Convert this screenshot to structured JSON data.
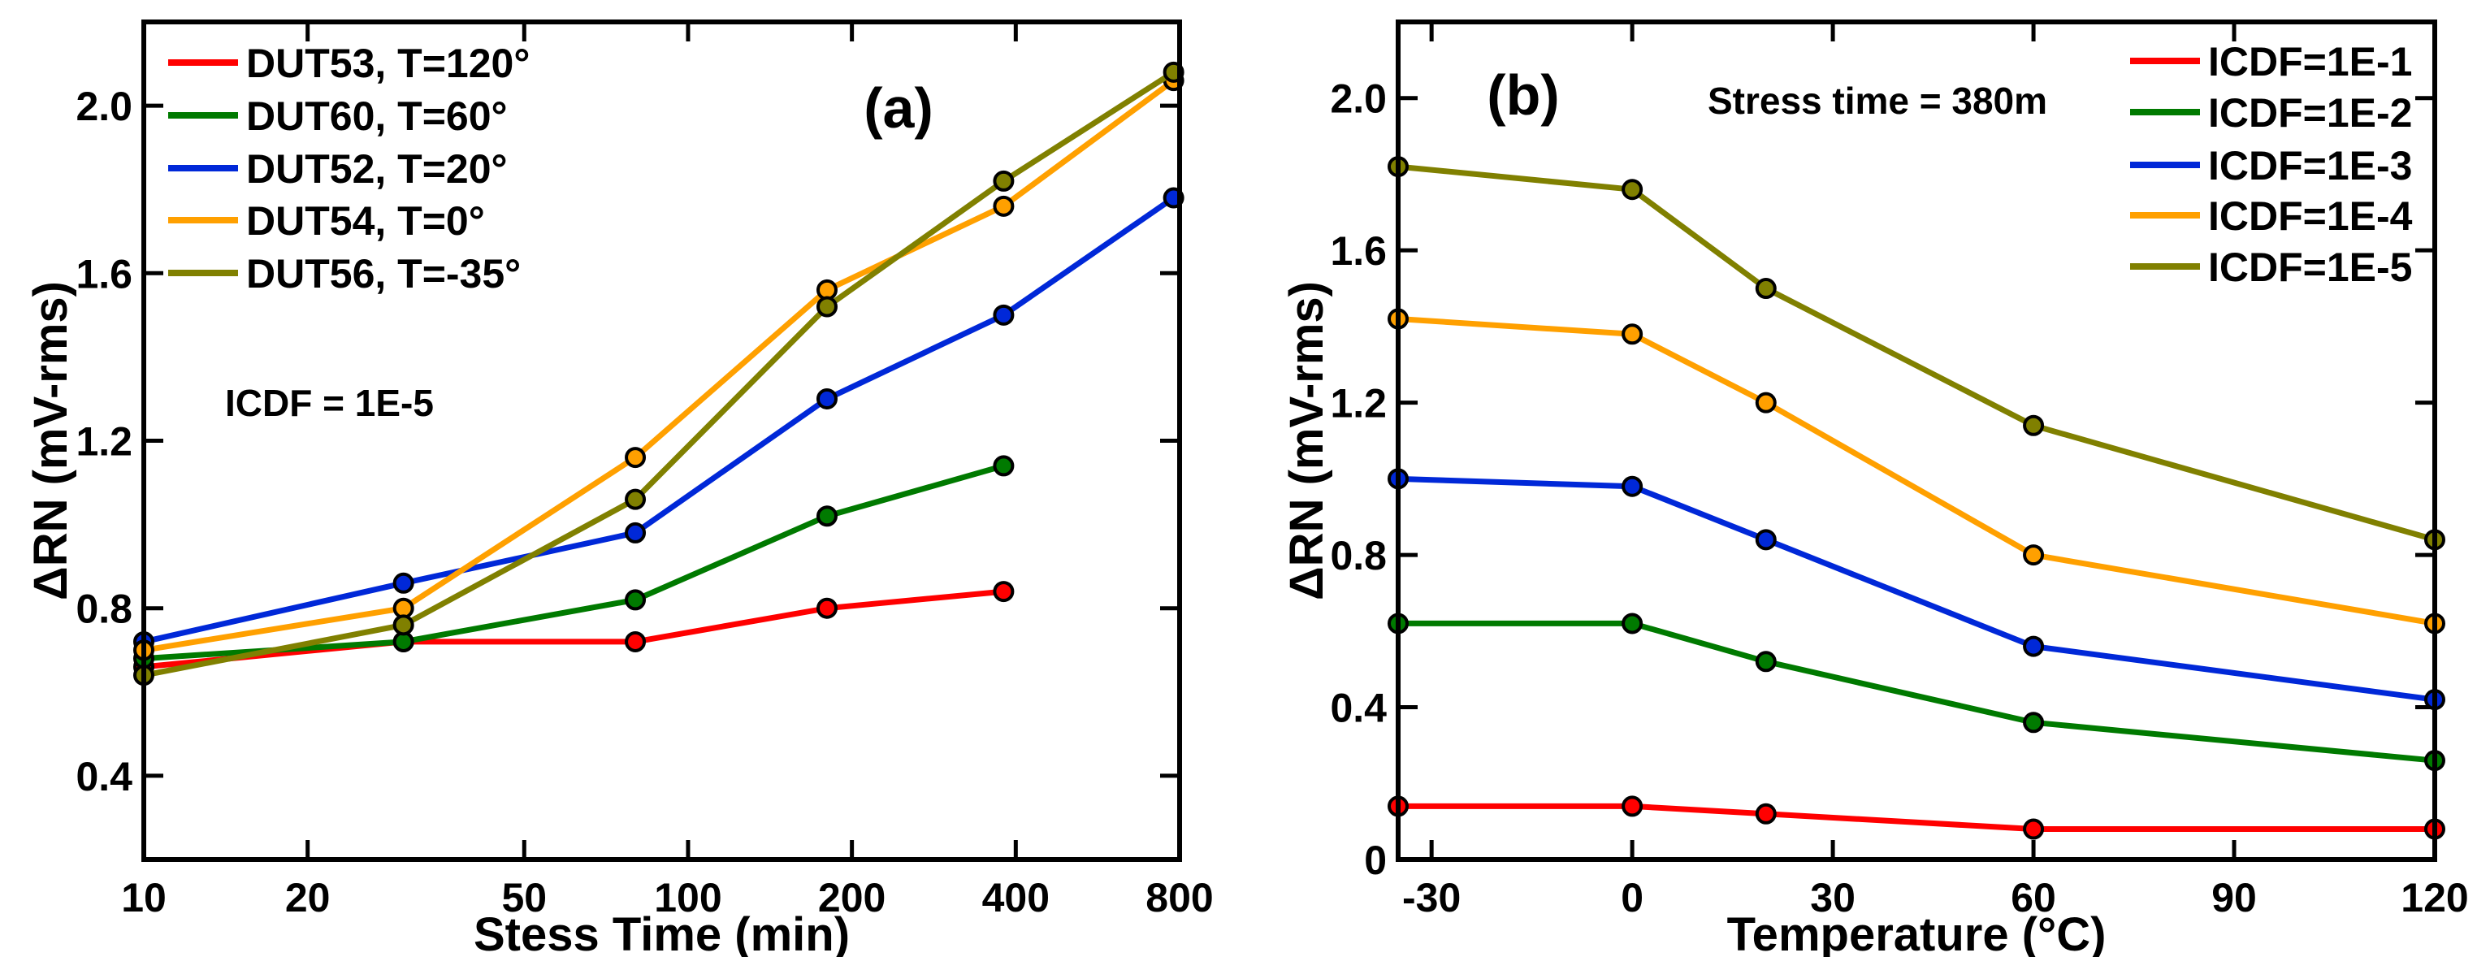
{
  "chart_data": [
    {
      "type": "line",
      "panel_label": "(a)",
      "annotation": "ICDF = 1E-5",
      "xlabel": "Stess Time (min)",
      "ylabel": "ΔRN (mV-rms)",
      "xscale": "log",
      "xlim": [
        10,
        800
      ],
      "ylim": [
        0.2,
        2.2
      ],
      "xticks": [
        10,
        20,
        50,
        100,
        200,
        400,
        800
      ],
      "xtick_labels": [
        "10",
        "20",
        "50",
        "100",
        "200",
        "400",
        "800"
      ],
      "yticks": [
        0.4,
        0.8,
        1.2,
        1.6,
        2.0
      ],
      "ytick_labels": [
        "0.4",
        "0.8",
        "1.2",
        "1.6",
        "2.0"
      ],
      "legend_position": "top-left",
      "grid": false,
      "series": [
        {
          "name": "DUT53, T=120°",
          "color": "#ff0000",
          "x": [
            10,
            30,
            80,
            180,
            380
          ],
          "y": [
            0.66,
            0.72,
            0.72,
            0.8,
            0.84
          ]
        },
        {
          "name": "DUT60, T=60°",
          "color": "#007a00",
          "x": [
            10,
            30,
            80,
            180,
            380
          ],
          "y": [
            0.68,
            0.72,
            0.82,
            1.02,
            1.14
          ]
        },
        {
          "name": "DUT52, T=20°",
          "color": "#0028d8",
          "x": [
            10,
            30,
            80,
            180,
            380,
            780
          ],
          "y": [
            0.72,
            0.86,
            0.98,
            1.3,
            1.5,
            1.78
          ]
        },
        {
          "name": "DUT54, T=0°",
          "color": "#ffa000",
          "x": [
            10,
            30,
            80,
            180,
            380,
            780
          ],
          "y": [
            0.7,
            0.8,
            1.16,
            1.56,
            1.76,
            2.06
          ]
        },
        {
          "name": "DUT56, T=-35°",
          "color": "#808000",
          "x": [
            10,
            30,
            80,
            180,
            380,
            780
          ],
          "y": [
            0.64,
            0.76,
            1.06,
            1.52,
            1.82,
            2.08
          ]
        }
      ]
    },
    {
      "type": "line",
      "panel_label": "(b)",
      "annotation": "Stress time = 380m",
      "xlabel": "Temperature (°C)",
      "ylabel": "ΔRN (mV-rms)",
      "xscale": "linear",
      "xlim": [
        -35,
        120
      ],
      "ylim": [
        0,
        2.2
      ],
      "xticks": [
        -30,
        0,
        30,
        60,
        90,
        120
      ],
      "xtick_labels": [
        "-30",
        "0",
        "30",
        "60",
        "90",
        "120"
      ],
      "yticks": [
        0,
        0.4,
        0.8,
        1.2,
        1.6,
        2.0
      ],
      "ytick_labels": [
        "0",
        "0.4",
        "0.8",
        "1.2",
        "1.6",
        "2.0"
      ],
      "legend_position": "top-right",
      "grid": false,
      "series": [
        {
          "name": "ICDF=1E-1",
          "color": "#ff0000",
          "x": [
            -35,
            0,
            20,
            60,
            120
          ],
          "y": [
            0.14,
            0.14,
            0.12,
            0.08,
            0.08
          ]
        },
        {
          "name": "ICDF=1E-2",
          "color": "#007a00",
          "x": [
            -35,
            0,
            20,
            60,
            120
          ],
          "y": [
            0.62,
            0.62,
            0.52,
            0.36,
            0.26
          ]
        },
        {
          "name": "ICDF=1E-3",
          "color": "#0028d8",
          "x": [
            -35,
            0,
            20,
            60,
            120
          ],
          "y": [
            1.0,
            0.98,
            0.84,
            0.56,
            0.42
          ]
        },
        {
          "name": "ICDF=1E-4",
          "color": "#ffa000",
          "x": [
            -35,
            0,
            20,
            60,
            120
          ],
          "y": [
            1.42,
            1.38,
            1.2,
            0.8,
            0.62
          ]
        },
        {
          "name": "ICDF=1E-5",
          "color": "#808000",
          "x": [
            -35,
            0,
            20,
            60,
            120
          ],
          "y": [
            1.82,
            1.76,
            1.5,
            1.14,
            0.84
          ]
        }
      ]
    }
  ]
}
